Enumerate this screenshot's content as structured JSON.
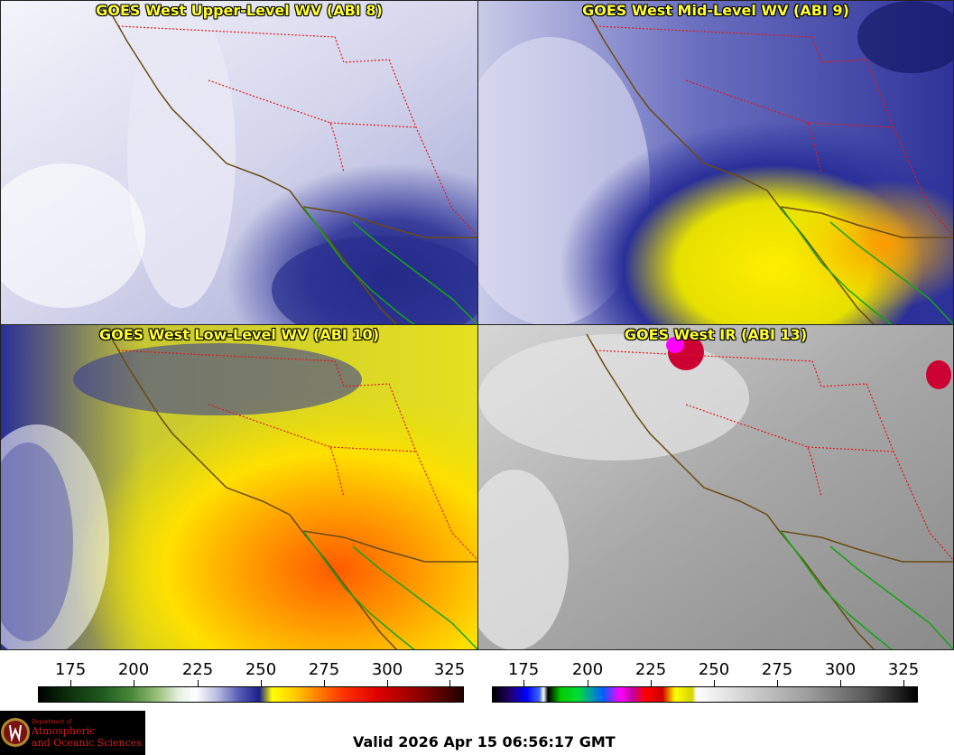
{
  "panels": [
    {
      "title": "GOES West Upper-Level WV (ABI 8)"
    },
    {
      "title": "GOES West Mid-Level WV (ABI 9)"
    },
    {
      "title": "GOES West Low-Level WV (ABI 10)"
    },
    {
      "title": "GOES West IR (ABI 13)"
    }
  ],
  "colorbars": {
    "wv": {
      "ticks": [
        "175",
        "200",
        "225",
        "250",
        "275",
        "300",
        "325"
      ]
    },
    "ir": {
      "ticks": [
        "175",
        "200",
        "225",
        "250",
        "275",
        "300",
        "325"
      ]
    }
  },
  "logo": {
    "line1": "Department of",
    "line2": "Atmospheric",
    "line3": "and Oceanic Sciences"
  },
  "footer": {
    "valid": "Valid 2026 Apr 15 06:56:17 GMT"
  }
}
